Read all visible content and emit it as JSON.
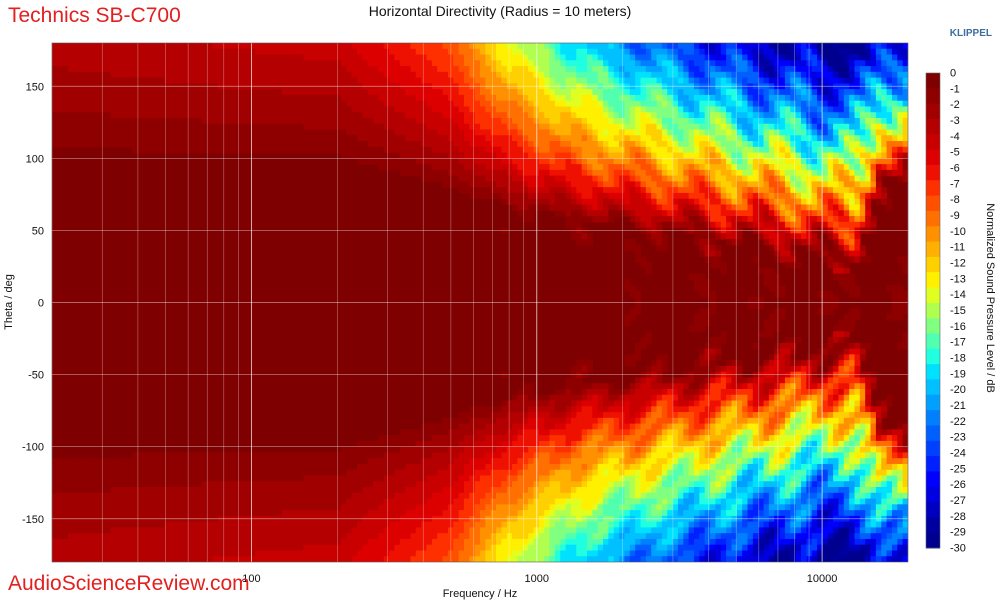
{
  "header": {
    "brand": "Technics SB-C700",
    "klippel": "KLIPPEL"
  },
  "footer": {
    "watermark": "AudioScienceReview.com"
  },
  "chart_data": {
    "type": "heatmap",
    "title": "Horizontal Directivity (Radius = 10 meters)",
    "xlabel": "Frequency / Hz",
    "ylabel": "Theta / deg",
    "x_scale": "log",
    "xlim": [
      20,
      20000
    ],
    "ylim": [
      -180,
      180
    ],
    "x_ticks": [
      100,
      1000,
      10000
    ],
    "x_tick_labels": [
      "100",
      "1000",
      "10000"
    ],
    "y_ticks": [
      150,
      100,
      50,
      0,
      -50,
      -100,
      -150
    ],
    "y_tick_labels": [
      "150",
      "100",
      "50",
      "0",
      "-50",
      "-100",
      "-150"
    ],
    "grid": true,
    "colorbar": {
      "label": "Normalized Sound Pressure Level / dB",
      "range": [
        -30,
        0
      ],
      "ticks": [
        "0",
        "-1",
        "-2",
        "-3",
        "-4",
        "-5",
        "-6",
        "-7",
        "-8",
        "-9",
        "-10",
        "-11",
        "-12",
        "-13",
        "-14",
        "-15",
        "-16",
        "-17",
        "-18",
        "-19",
        "-20",
        "-21",
        "-22",
        "-23",
        "-24",
        "-25",
        "-26",
        "-27",
        "-28",
        "-29",
        "-30"
      ],
      "colors": [
        "#7f0000",
        "#8e0000",
        "#a10000",
        "#b40000",
        "#c80000",
        "#dc0000",
        "#ee1000",
        "#ff3000",
        "#ff5000",
        "#ff7000",
        "#ff9000",
        "#ffb000",
        "#ffd000",
        "#fff000",
        "#e0ff20",
        "#b0ff50",
        "#80ff80",
        "#50ffb0",
        "#20ffe0",
        "#00e0ff",
        "#00c0ff",
        "#00a0ff",
        "#0080ff",
        "#0060ff",
        "#0040ff",
        "#0020ff",
        "#0000ff",
        "#0000e0",
        "#0000c0",
        "#0000a0",
        "#00008f"
      ]
    },
    "contour_model": {
      "description": "Level vs frequency and angle; narrows with frequency",
      "low_freq_level": 0,
      "beam_halfwidth_deg_by_freq": [
        [
          20,
          180
        ],
        [
          200,
          175
        ],
        [
          400,
          150
        ],
        [
          600,
          130
        ],
        [
          1000,
          110
        ],
        [
          2000,
          95
        ],
        [
          4000,
          80
        ],
        [
          8000,
          65
        ],
        [
          13000,
          50
        ],
        [
          16000,
          160
        ],
        [
          20000,
          150
        ]
      ],
      "off_axis_floor_by_freq": [
        [
          20,
          -3
        ],
        [
          200,
          -4
        ],
        [
          500,
          -8
        ],
        [
          800,
          -14
        ],
        [
          1500,
          -20
        ],
        [
          3000,
          -24
        ],
        [
          6000,
          -28
        ],
        [
          10000,
          -30
        ],
        [
          15000,
          -30
        ],
        [
          20000,
          -25
        ]
      ]
    }
  }
}
